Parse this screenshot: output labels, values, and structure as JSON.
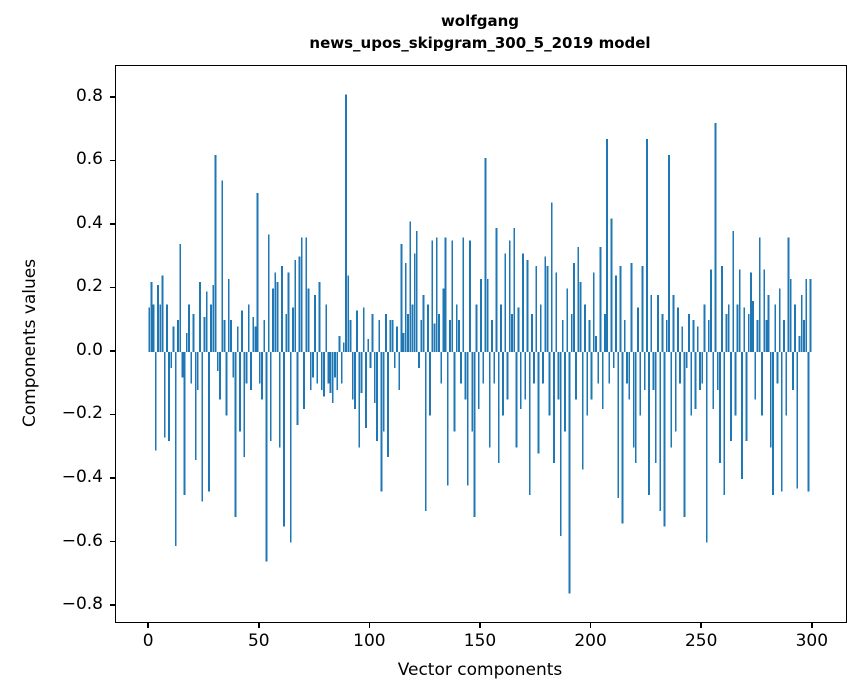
{
  "chart_data": {
    "type": "bar",
    "title_lines": [
      "wolfgang",
      "news_upos_skipgram_300_5_2019 model"
    ],
    "xlabel": "Vector components",
    "ylabel": "Components values",
    "xlim": [
      -15,
      315
    ],
    "ylim": [
      -0.85,
      0.9
    ],
    "grid": false,
    "legend": "none",
    "bar_color": "#1f77b4",
    "bar_width": 0.8,
    "n_components": 300,
    "x_start": 0,
    "x_ticks": [
      {
        "value": 0,
        "label": "0"
      },
      {
        "value": 50,
        "label": "50"
      },
      {
        "value": 100,
        "label": "100"
      },
      {
        "value": 150,
        "label": "150"
      },
      {
        "value": 200,
        "label": "200"
      },
      {
        "value": 250,
        "label": "250"
      },
      {
        "value": 300,
        "label": "300"
      }
    ],
    "y_ticks": [
      {
        "value": -0.8,
        "label": "−0.8"
      },
      {
        "value": -0.6,
        "label": "−0.6"
      },
      {
        "value": -0.4,
        "label": "−0.4"
      },
      {
        "value": -0.2,
        "label": "−0.2"
      },
      {
        "value": 0.0,
        "label": "0.0"
      },
      {
        "value": 0.2,
        "label": "0.2"
      },
      {
        "value": 0.4,
        "label": "0.4"
      },
      {
        "value": 0.6,
        "label": "0.6"
      },
      {
        "value": 0.8,
        "label": "0.8"
      }
    ],
    "values": [
      0.14,
      0.22,
      0.15,
      -0.31,
      0.21,
      0.15,
      0.24,
      -0.27,
      0.15,
      -0.28,
      -0.05,
      0.08,
      -0.61,
      0.1,
      0.34,
      -0.08,
      -0.45,
      0.06,
      0.15,
      -0.1,
      0.12,
      -0.34,
      -0.12,
      0.22,
      -0.47,
      0.11,
      0.19,
      -0.44,
      0.15,
      0.21,
      0.62,
      -0.06,
      -0.15,
      0.54,
      0.1,
      -0.2,
      0.23,
      0.1,
      -0.08,
      -0.52,
      0.08,
      -0.25,
      0.13,
      -0.33,
      -0.1,
      0.15,
      -0.12,
      0.11,
      0.08,
      0.5,
      -0.1,
      -0.15,
      0.1,
      -0.66,
      0.37,
      -0.28,
      0.2,
      0.25,
      0.22,
      -0.3,
      0.27,
      -0.55,
      0.12,
      0.25,
      -0.6,
      0.14,
      0.29,
      -0.23,
      0.3,
      0.36,
      -0.18,
      0.36,
      0.2,
      -0.12,
      -0.08,
      0.18,
      -0.1,
      0.22,
      -0.12,
      -0.14,
      0.15,
      -0.1,
      -0.13,
      -0.16,
      -0.08,
      -0.12,
      0.05,
      -0.1,
      0.03,
      0.81,
      0.24,
      0.1,
      -0.15,
      -0.18,
      0.13,
      -0.3,
      -0.13,
      0.14,
      -0.24,
      0.04,
      -0.05,
      0.12,
      -0.16,
      -0.28,
      0.1,
      -0.44,
      -0.25,
      0.12,
      -0.33,
      0.1,
      0.1,
      -0.05,
      0.08,
      -0.12,
      0.34,
      0.06,
      0.28,
      0.12,
      0.41,
      0.15,
      0.31,
      0.38,
      -0.05,
      0.1,
      0.18,
      -0.5,
      0.15,
      -0.2,
      0.35,
      0.09,
      0.36,
      0.12,
      -0.1,
      0.2,
      0.36,
      -0.42,
      0.1,
      0.35,
      -0.25,
      0.15,
      0.1,
      -0.1,
      0.36,
      -0.15,
      -0.42,
      0.35,
      -0.25,
      -0.52,
      0.15,
      -0.18,
      0.23,
      -0.1,
      0.61,
      0.23,
      -0.3,
      0.1,
      -0.1,
      0.39,
      -0.35,
      0.15,
      -0.2,
      0.31,
      -0.15,
      0.35,
      0.12,
      0.39,
      -0.3,
      0.14,
      -0.18,
      0.31,
      -0.15,
      0.29,
      -0.45,
      0.12,
      -0.1,
      0.27,
      -0.32,
      0.15,
      -0.1,
      0.3,
      0.27,
      -0.2,
      0.47,
      -0.35,
      0.25,
      -0.15,
      -0.58,
      0.1,
      -0.25,
      0.2,
      -0.76,
      0.12,
      0.28,
      -0.15,
      0.33,
      0.22,
      -0.37,
      0.15,
      -0.2,
      0.1,
      -0.15,
      0.25,
      0.05,
      -0.1,
      0.33,
      -0.18,
      0.12,
      0.67,
      -0.1,
      0.42,
      -0.05,
      0.24,
      -0.46,
      0.27,
      -0.54,
      0.1,
      -0.1,
      -0.15,
      0.28,
      -0.3,
      -0.35,
      0.14,
      -0.2,
      0.27,
      -0.12,
      0.67,
      -0.45,
      0.18,
      -0.12,
      -0.35,
      0.18,
      -0.5,
      0.12,
      -0.55,
      0.1,
      0.62,
      -0.3,
      0.18,
      -0.25,
      0.14,
      -0.1,
      0.08,
      -0.52,
      -0.05,
      0.12,
      -0.2,
      0.1,
      -0.18,
      0.08,
      -0.12,
      -0.1,
      0.15,
      -0.6,
      0.1,
      0.26,
      -0.18,
      0.72,
      -0.12,
      -0.35,
      0.27,
      -0.45,
      0.12,
      0.15,
      -0.28,
      0.38,
      -0.2,
      0.15,
      0.26,
      -0.4,
      0.14,
      -0.28,
      0.12,
      0.25,
      0.16,
      -0.15,
      0.1,
      0.36,
      -0.2,
      0.26,
      0.1,
      0.18,
      -0.3,
      -0.45,
      0.15,
      -0.1,
      0.2,
      -0.44,
      0.1,
      -0.2,
      0.36,
      0.23,
      -0.12,
      0.15,
      -0.43,
      0.05,
      0.18,
      0.1,
      0.23,
      -0.44,
      0.23
    ]
  }
}
